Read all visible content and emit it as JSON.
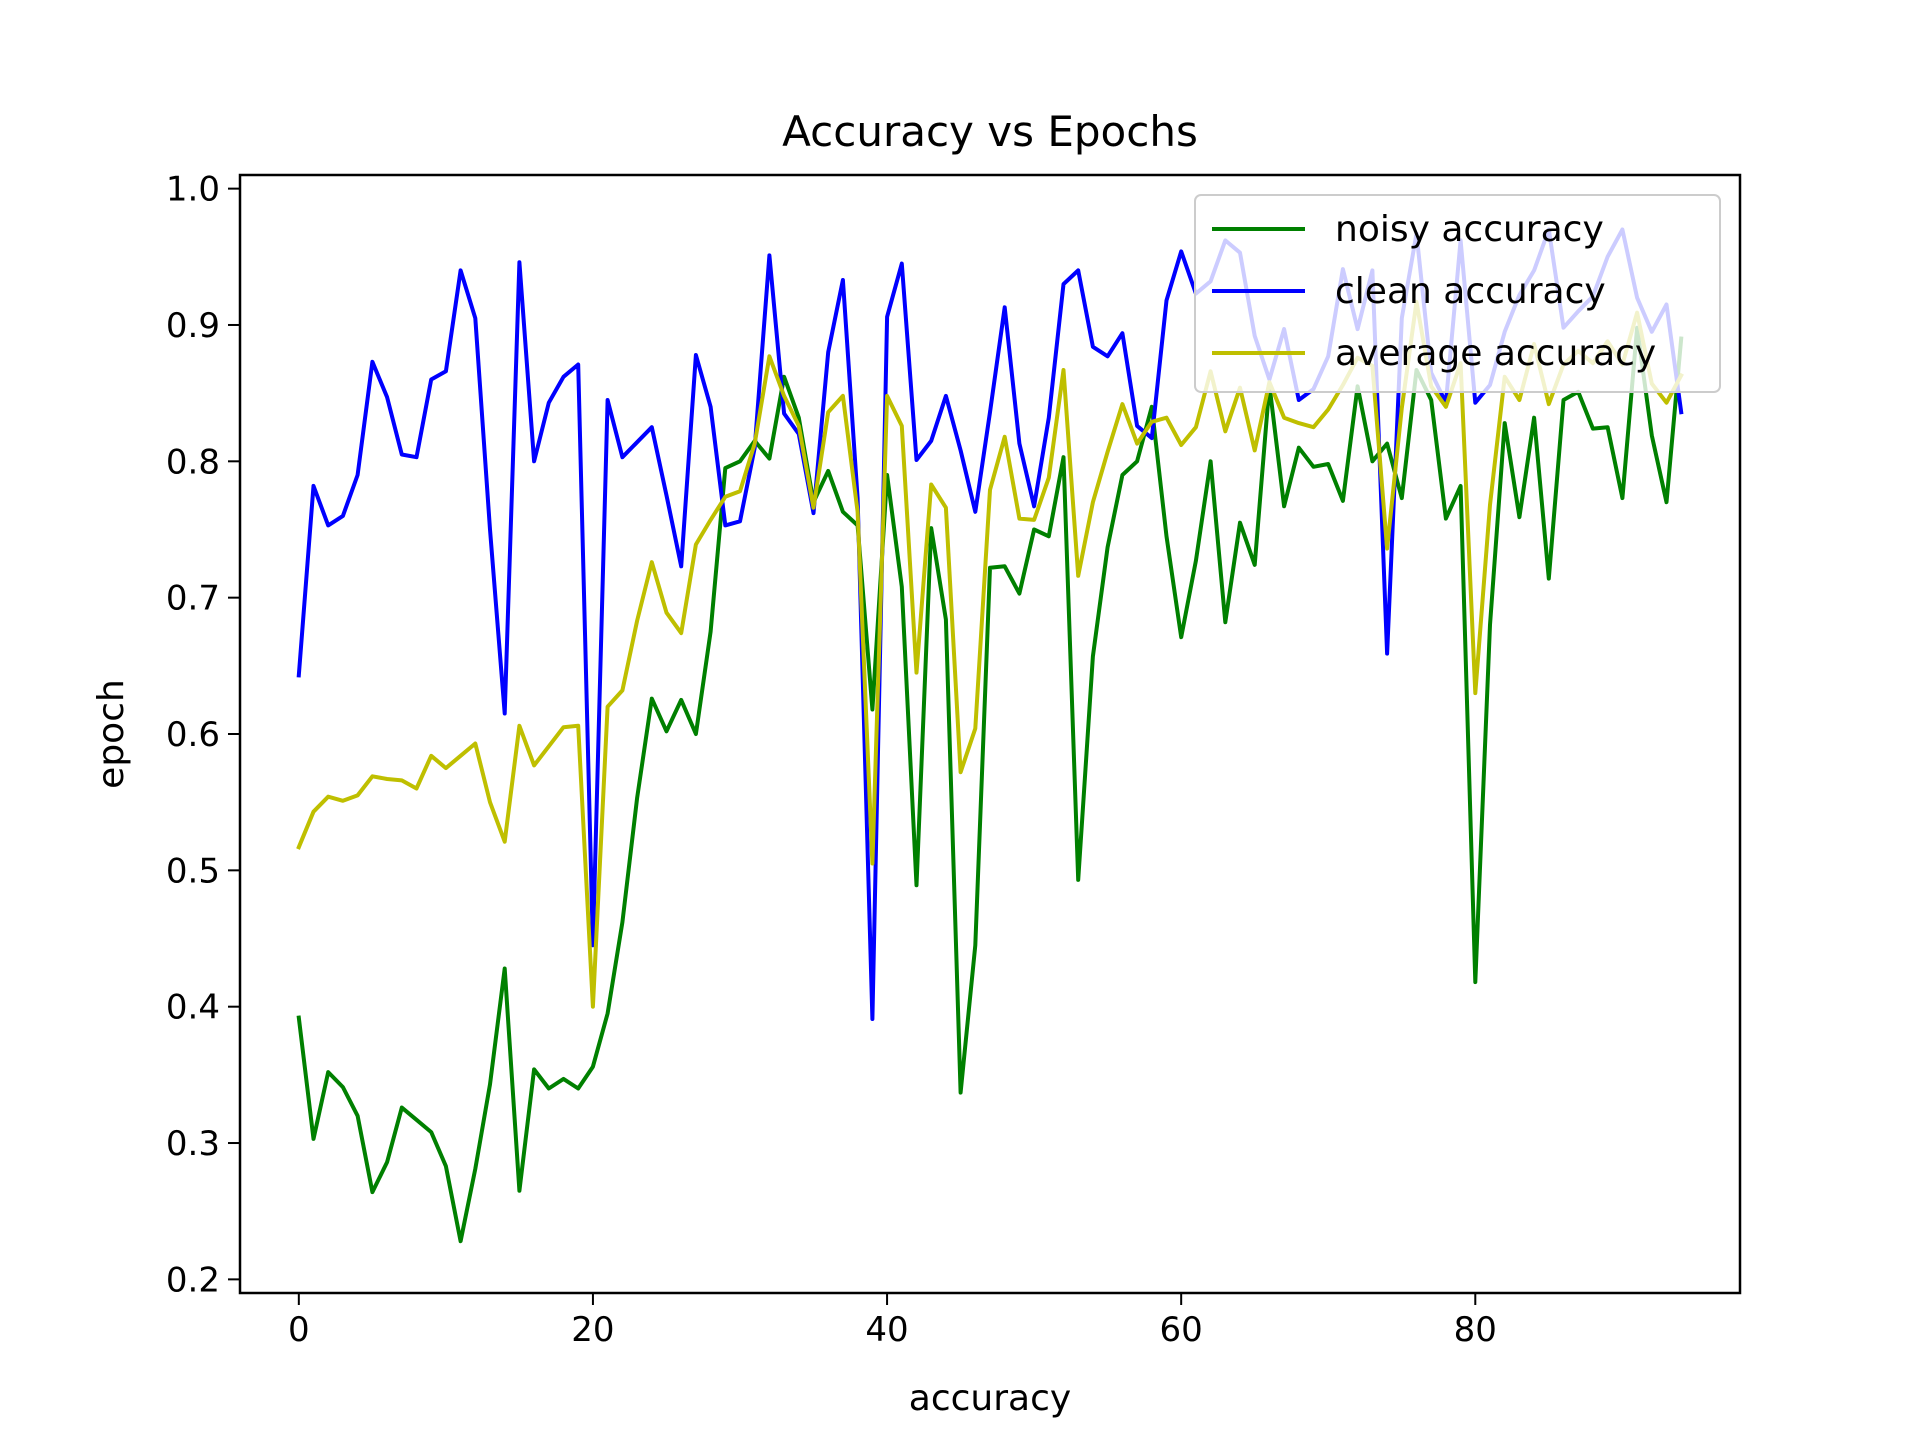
{
  "chart_data": {
    "type": "line",
    "title": "Accuracy vs Epochs",
    "xlabel": "accuracy",
    "ylabel": "epoch",
    "xlim": [
      -4,
      98
    ],
    "ylim": [
      0.19,
      1.01
    ],
    "xticks": [
      0,
      20,
      40,
      60,
      80
    ],
    "yticks": [
      0.2,
      0.3,
      0.4,
      0.5,
      0.6,
      0.7,
      0.8,
      0.9,
      1.0
    ],
    "grid": false,
    "legend_position": "upper right",
    "series": [
      {
        "name": "noisy accuracy",
        "color": "#008000",
        "values": [
          0.392,
          0.303,
          0.352,
          0.341,
          0.32,
          0.264,
          0.286,
          0.326,
          0.317,
          0.308,
          0.283,
          0.228,
          0.281,
          0.343,
          0.428,
          0.265,
          0.354,
          0.34,
          0.347,
          0.34,
          0.356,
          0.395,
          0.462,
          0.553,
          0.626,
          0.602,
          0.625,
          0.6,
          0.675,
          0.795,
          0.8,
          0.815,
          0.802,
          0.862,
          0.832,
          0.77,
          0.793,
          0.763,
          0.753,
          0.618,
          0.79,
          0.708,
          0.489,
          0.751,
          0.684,
          0.337,
          0.445,
          0.722,
          0.723,
          0.703,
          0.75,
          0.745,
          0.803,
          0.493,
          0.657,
          0.737,
          0.79,
          0.8,
          0.84,
          0.745,
          0.671,
          0.727,
          0.8,
          0.682,
          0.755,
          0.724,
          0.856,
          0.767,
          0.81,
          0.796,
          0.798,
          0.771,
          0.855,
          0.8,
          0.813,
          0.773,
          0.867,
          0.845,
          0.758,
          0.782,
          0.418,
          0.68,
          0.828,
          0.759,
          0.832,
          0.714,
          0.845,
          0.851,
          0.824,
          0.825,
          0.773,
          0.898,
          0.819,
          0.77,
          0.89
        ]
      },
      {
        "name": "clean accuracy",
        "color": "#0000ff",
        "values": [
          0.643,
          0.782,
          0.753,
          0.76,
          0.79,
          0.873,
          0.847,
          0.805,
          0.803,
          0.86,
          0.866,
          0.94,
          0.905,
          0.75,
          0.615,
          0.946,
          0.8,
          0.843,
          0.862,
          0.871,
          0.445,
          0.845,
          0.803,
          0.814,
          0.825,
          0.775,
          0.723,
          0.878,
          0.84,
          0.753,
          0.756,
          0.81,
          0.951,
          0.835,
          0.82,
          0.762,
          0.88,
          0.933,
          0.773,
          0.391,
          0.906,
          0.945,
          0.801,
          0.815,
          0.848,
          0.808,
          0.763,
          0.836,
          0.913,
          0.813,
          0.767,
          0.832,
          0.93,
          0.94,
          0.884,
          0.877,
          0.894,
          0.826,
          0.817,
          0.918,
          0.954,
          0.923,
          0.932,
          0.962,
          0.953,
          0.892,
          0.86,
          0.897,
          0.845,
          0.853,
          0.877,
          0.941,
          0.897,
          0.94,
          0.659,
          0.905,
          0.967,
          0.865,
          0.843,
          0.962,
          0.843,
          0.856,
          0.895,
          0.922,
          0.94,
          0.97,
          0.898,
          0.91,
          0.921,
          0.95,
          0.97,
          0.92,
          0.895,
          0.915,
          0.836
        ]
      },
      {
        "name": "average accuracy",
        "color": "#bfbf00",
        "values": [
          0.517,
          0.543,
          0.554,
          0.551,
          0.555,
          0.569,
          0.567,
          0.566,
          0.56,
          0.584,
          0.575,
          0.584,
          0.593,
          0.55,
          0.521,
          0.606,
          0.577,
          0.591,
          0.605,
          0.606,
          0.4,
          0.62,
          0.632,
          0.683,
          0.726,
          0.689,
          0.674,
          0.739,
          0.757,
          0.774,
          0.778,
          0.813,
          0.877,
          0.848,
          0.826,
          0.766,
          0.836,
          0.848,
          0.763,
          0.505,
          0.848,
          0.826,
          0.645,
          0.783,
          0.766,
          0.572,
          0.604,
          0.779,
          0.818,
          0.758,
          0.757,
          0.788,
          0.867,
          0.716,
          0.77,
          0.807,
          0.842,
          0.813,
          0.829,
          0.832,
          0.812,
          0.825,
          0.866,
          0.822,
          0.854,
          0.808,
          0.858,
          0.832,
          0.828,
          0.825,
          0.838,
          0.856,
          0.876,
          0.87,
          0.736,
          0.839,
          0.917,
          0.855,
          0.84,
          0.872,
          0.63,
          0.768,
          0.862,
          0.845,
          0.886,
          0.842,
          0.871,
          0.881,
          0.872,
          0.888,
          0.871,
          0.909,
          0.857,
          0.843,
          0.863
        ]
      }
    ]
  }
}
